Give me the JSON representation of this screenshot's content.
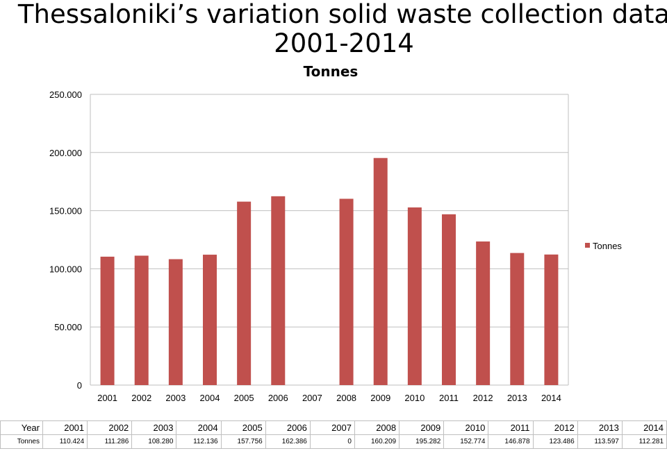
{
  "title": "Thessaloniki’s variation solid waste collection data 2001-2014",
  "chart_data": {
    "type": "bar",
    "title": "Tonnes",
    "categories": [
      "2001",
      "2002",
      "2003",
      "2004",
      "2005",
      "2006",
      "2007",
      "2008",
      "2009",
      "2010",
      "2011",
      "2012",
      "2013",
      "2014"
    ],
    "series": [
      {
        "name": "Tonnes",
        "values": [
          110.424,
          111.286,
          108.28,
          112.136,
          157.756,
          162.386,
          0,
          160.209,
          195.282,
          152.774,
          146.878,
          123.486,
          113.597,
          112.281
        ],
        "color": "#c0504d"
      }
    ],
    "ylim": [
      0,
      250
    ],
    "yticks": [
      0,
      50,
      100,
      150,
      200,
      250
    ],
    "ytick_labels": [
      "0",
      "50.000",
      "100.000",
      "150.000",
      "200.000",
      "250.000"
    ],
    "grid": true,
    "legend": "right"
  },
  "table": {
    "year_header": "Year",
    "value_header": "Tonnes",
    "years": [
      "2001",
      "2002",
      "2003",
      "2004",
      "2005",
      "2006",
      "2007",
      "2008",
      "2009",
      "2010",
      "2011",
      "2012",
      "2013",
      "2014"
    ],
    "values": [
      "110.424",
      "111.286",
      "108.280",
      "112.136",
      "157.756",
      "162.386",
      "0",
      "160.209",
      "195.282",
      "152.774",
      "146.878",
      "123.486",
      "113.597",
      "112.281"
    ]
  }
}
